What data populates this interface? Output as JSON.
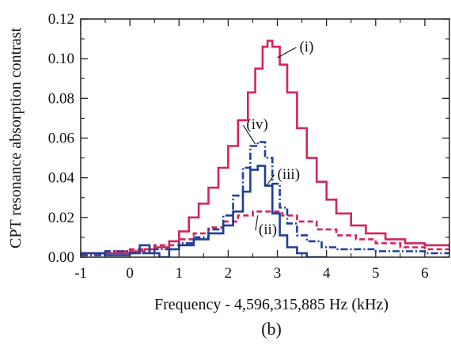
{
  "chart_data": {
    "type": "line",
    "title": "",
    "xlabel": "Frequency - 4,596,315,885 Hz (kHz)",
    "ylabel": "CPT resonance absorption contrast",
    "caption": "(b)",
    "xlim": [
      -1,
      6.5
    ],
    "ylim": [
      0,
      0.12
    ],
    "x_ticks": [
      -1,
      0,
      1,
      2,
      3,
      4,
      5,
      6
    ],
    "x_tick_labels": [
      "-1",
      "0",
      "1",
      "2",
      "3",
      "4",
      "5",
      "6"
    ],
    "y_ticks": [
      0,
      0.02,
      0.04,
      0.06,
      0.08,
      0.1,
      0.12
    ],
    "y_tick_labels": [
      "0.00",
      "0.02",
      "0.04",
      "0.06",
      "0.08",
      "0.10",
      "0.12"
    ],
    "grid": false,
    "legend": "none",
    "series": [
      {
        "name": "(i)",
        "color": "#d6245a",
        "dash": "solid",
        "x": [
          -1,
          -0.5,
          0,
          0.3,
          0.5,
          0.8,
          1.0,
          1.2,
          1.4,
          1.6,
          1.8,
          2.0,
          2.2,
          2.4,
          2.55,
          2.7,
          2.8,
          2.9,
          3.05,
          3.2,
          3.4,
          3.6,
          3.8,
          4.0,
          4.2,
          4.5,
          4.8,
          5.2,
          5.6,
          6.0,
          6.5
        ],
        "y": [
          0.002,
          0.002,
          0.003,
          0.004,
          0.005,
          0.008,
          0.013,
          0.02,
          0.027,
          0.035,
          0.045,
          0.056,
          0.069,
          0.083,
          0.095,
          0.106,
          0.109,
          0.106,
          0.097,
          0.083,
          0.065,
          0.05,
          0.038,
          0.029,
          0.022,
          0.016,
          0.012,
          0.009,
          0.007,
          0.006,
          0.005
        ]
      },
      {
        "name": "(ii)",
        "color": "#d6245a",
        "dash": "dashed",
        "x": [
          -1,
          -0.5,
          0,
          0.5,
          1.0,
          1.3,
          1.6,
          1.9,
          2.2,
          2.5,
          2.8,
          3.1,
          3.4,
          3.8,
          4.2,
          4.6,
          5.0,
          5.5,
          6.0,
          6.5
        ],
        "y": [
          0.002,
          0.003,
          0.004,
          0.006,
          0.009,
          0.012,
          0.015,
          0.018,
          0.021,
          0.023,
          0.023,
          0.021,
          0.018,
          0.014,
          0.011,
          0.009,
          0.007,
          0.005,
          0.004,
          0.004
        ]
      },
      {
        "name": "(iii)",
        "color": "#1e3f9a",
        "dash": "solid",
        "x": [
          -1,
          -0.5,
          0,
          0.2,
          0.4,
          0.6,
          0.8,
          1.0,
          1.3,
          1.6,
          1.9,
          2.1,
          2.3,
          2.45,
          2.6,
          2.75,
          2.9,
          3.05,
          3.2,
          3.4,
          3.6,
          3.8,
          4.0
        ],
        "y": [
          0.002,
          0.001,
          0.002,
          0.006,
          0.002,
          0.0,
          0.004,
          0.006,
          0.009,
          0.012,
          0.016,
          0.023,
          0.033,
          0.044,
          0.046,
          0.036,
          0.022,
          0.011,
          0.005,
          0.002,
          0.0,
          0.0,
          0.0
        ]
      },
      {
        "name": "(iv)",
        "color": "#1e3f9a",
        "dash": "dashdot",
        "x": [
          -1,
          -0.5,
          0,
          0.5,
          1.0,
          1.3,
          1.6,
          1.9,
          2.1,
          2.3,
          2.45,
          2.6,
          2.75,
          2.9,
          3.05,
          3.2,
          3.4,
          3.6,
          3.9,
          4.2,
          4.6,
          5.0,
          5.5,
          6.0,
          6.5
        ],
        "y": [
          0.001,
          0.003,
          0.002,
          0.004,
          0.007,
          0.01,
          0.014,
          0.021,
          0.031,
          0.045,
          0.056,
          0.058,
          0.05,
          0.037,
          0.025,
          0.017,
          0.011,
          0.008,
          0.005,
          0.004,
          0.004,
          0.003,
          0.003,
          0.002,
          0.002
        ]
      }
    ],
    "annotations": [
      {
        "text": "(i)",
        "x": 3.45,
        "y": 0.1037,
        "ax": 3.0,
        "ay": 0.1005
      },
      {
        "text": "(iv)",
        "x": 2.37,
        "y": 0.0645,
        "ax": 2.55,
        "ay": 0.057
      },
      {
        "text": "(iii)",
        "x": 3.0,
        "y": 0.0395,
        "ax": 2.78,
        "ay": 0.036
      },
      {
        "text": "(ii)",
        "x": 2.62,
        "y": 0.0115,
        "ax": 2.6,
        "ay": 0.021
      }
    ]
  }
}
